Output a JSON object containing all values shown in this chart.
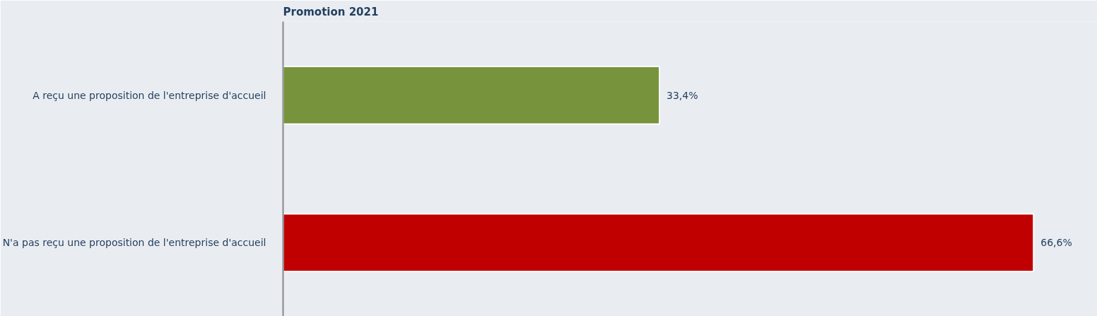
{
  "chart_data": {
    "type": "bar",
    "orientation": "horizontal",
    "title": "Promotion 2021",
    "categories": [
      "A reçu une proposition de l'entreprise d'accueil",
      "N'a pas reçu une proposition de l'entreprise d'accueil"
    ],
    "values": [
      33.4,
      66.6
    ],
    "colors": [
      "#77933c",
      "#c00000"
    ],
    "value_labels": [
      "33,4%",
      "66,6%"
    ],
    "grid": false
  }
}
